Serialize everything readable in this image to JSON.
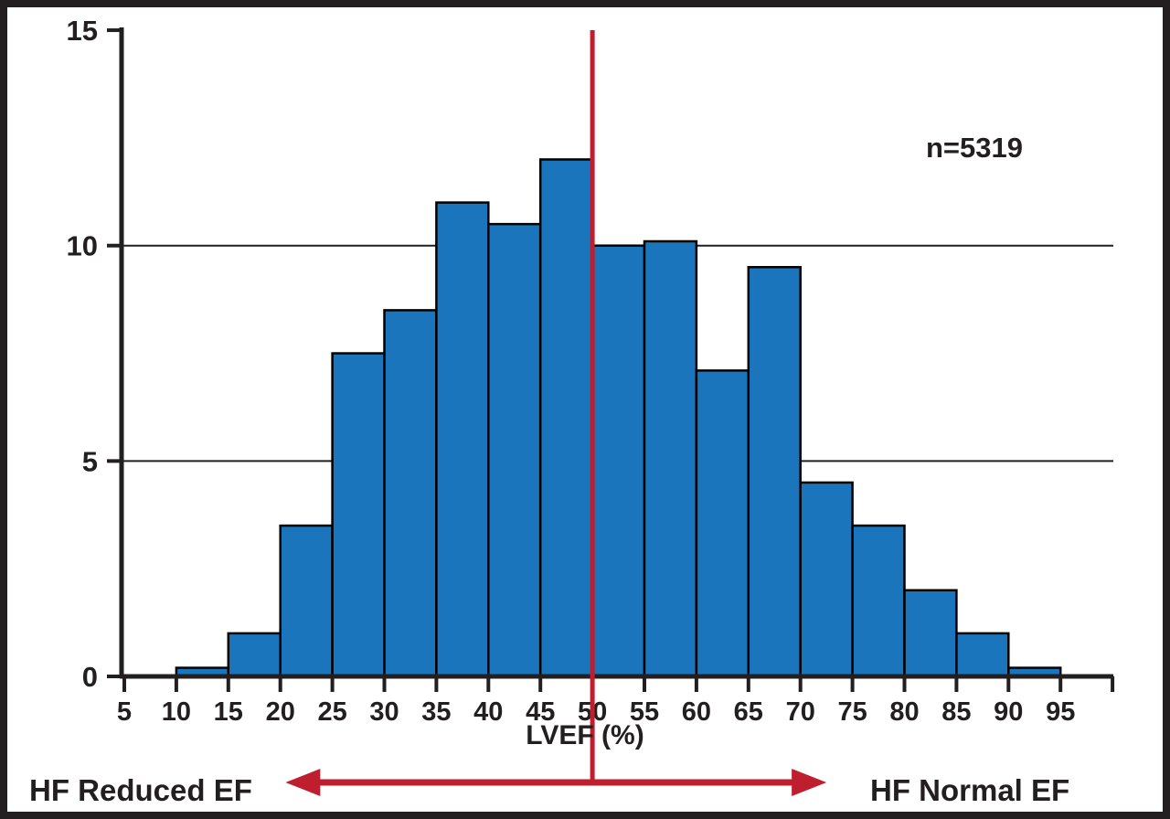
{
  "figure": {
    "background": "#ffffff",
    "frame_color": "#231f20"
  },
  "chart_data": {
    "type": "bar",
    "subtype": "histogram",
    "title": "",
    "xlabel": "LVEF (%)",
    "ylabel": "",
    "annotation": "n=5319",
    "xlim": [
      5,
      100
    ],
    "ylim": [
      0,
      15
    ],
    "x_ticks": [
      5,
      10,
      15,
      20,
      25,
      30,
      35,
      40,
      45,
      50,
      55,
      60,
      65,
      70,
      75,
      80,
      85,
      90,
      95
    ],
    "extra_unlabeled_ticks": [
      100
    ],
    "y_ticks": [
      0,
      5,
      10,
      15
    ],
    "gridlines_y": [
      5,
      10
    ],
    "grid": "horizontal",
    "legend_position": "none",
    "bin_width": 5,
    "bin_start": 10,
    "categories": [
      "10-15",
      "15-20",
      "20-25",
      "25-30",
      "30-35",
      "35-40",
      "40-45",
      "45-50",
      "50-55",
      "55-60",
      "60-65",
      "65-70",
      "70-75",
      "75-80",
      "80-85",
      "85-90",
      "90-95"
    ],
    "values": [
      0.2,
      1,
      3.5,
      7.5,
      8.5,
      11,
      10.5,
      12,
      10,
      10.1,
      7.1,
      9.5,
      4.5,
      3.5,
      2,
      1,
      0.2
    ],
    "bar_color": "#1b75bc",
    "bar_border_color": "#000000",
    "reference_line_x": 50,
    "reference_line_color": "#be1e2d",
    "arrow": {
      "x_start": 20.5,
      "x_end": 72.5,
      "color": "#be1e2d"
    }
  },
  "labels": {
    "n_label": "n=5319",
    "x_axis_title": "LVEF (%)",
    "left_region": "HF Reduced EF",
    "right_region": "HF Normal EF"
  }
}
